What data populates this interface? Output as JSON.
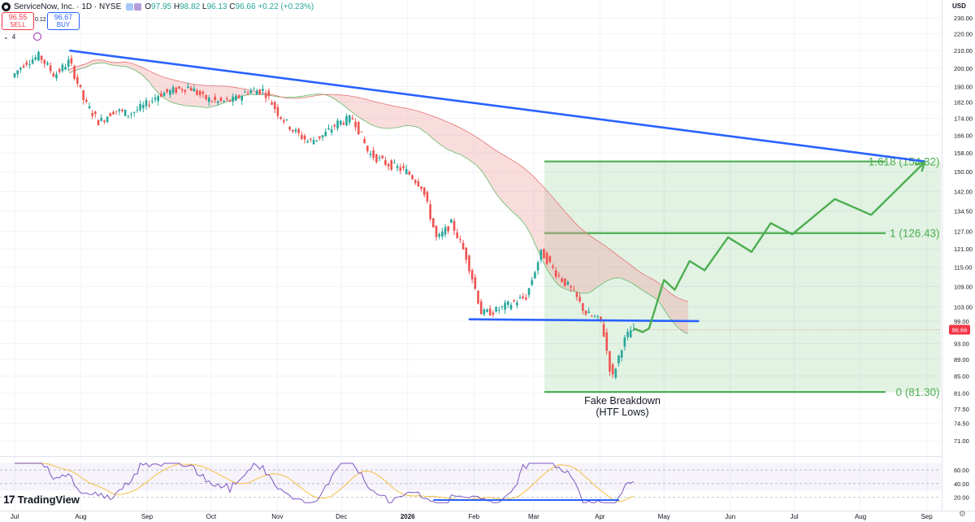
{
  "header": {
    "title": "ServiceNow, Inc. · 1D · NYSE",
    "ohlc": [
      {
        "k": "O",
        "v": "97.95"
      },
      {
        "k": "H",
        "v": "98.82"
      },
      {
        "k": "L",
        "v": "96.13"
      },
      {
        "k": "C",
        "v": "96.66"
      },
      {
        "k": "",
        "v": "+0.22 (+0.23%)"
      }
    ],
    "sell_price": "96.55",
    "sell_label": "SELL",
    "spread": "0.12",
    "buy_price": "96.67",
    "buy_label": "BUY",
    "indicator_count": "4"
  },
  "currency": "USD",
  "brand": "TradingView",
  "colors": {
    "up": "#26a69a",
    "down": "#ef5350",
    "trendline": "#2962ff",
    "fib": "#4caf50",
    "cloud_bull": "#a5d6a7",
    "cloud_bear": "#ef9a9a",
    "price_tag": "#f23645",
    "rsi": "#7e57c2",
    "rsi_ma": "#f5c042"
  },
  "chart_data": {
    "type": "candlestick",
    "symbol": "ServiceNow, Inc.",
    "interval": "1D",
    "exchange": "NYSE",
    "last_price": "96.66",
    "y_scale": "log",
    "ylim": [
      68,
      232
    ],
    "y_ticks": [
      230,
      220,
      210,
      200,
      190,
      182,
      174,
      166,
      158,
      150,
      142,
      134.5,
      127,
      121,
      115,
      109,
      103,
      99,
      93,
      89,
      85,
      81,
      77.5,
      74.5,
      71
    ],
    "y_tick_labels": [
      "230.00",
      "220.00",
      "210.00",
      "200.00",
      "190.00",
      "182.00",
      "174.00",
      "166.00",
      "158.00",
      "150.00",
      "142.00",
      "134.50",
      "127.00",
      "121.00",
      "115.00",
      "109.00",
      "103.00",
      "99.00",
      "93.00",
      "89.00",
      "85.00",
      "81.00",
      "77.50",
      "74.50",
      "71.00"
    ],
    "x_labels": [
      "Jul",
      "Aug",
      "Sep",
      "Oct",
      "Nov",
      "Dec",
      "2026",
      "Feb",
      "Mar",
      "Apr",
      "May",
      "Jun",
      "Jul",
      "Aug",
      "Sep"
    ],
    "price_path": [
      [
        "2025-07-01",
        195
      ],
      [
        "2025-07-07",
        203
      ],
      [
        "2025-07-14",
        207
      ],
      [
        "2025-07-21",
        196
      ],
      [
        "2025-07-28",
        204
      ],
      [
        "2025-08-04",
        182
      ],
      [
        "2025-08-11",
        172
      ],
      [
        "2025-08-18",
        178
      ],
      [
        "2025-08-25",
        176
      ],
      [
        "2025-09-01",
        180
      ],
      [
        "2025-09-08",
        186
      ],
      [
        "2025-09-15",
        188
      ],
      [
        "2025-09-22",
        190
      ],
      [
        "2025-09-29",
        184
      ],
      [
        "2025-10-06",
        182
      ],
      [
        "2025-10-13",
        183
      ],
      [
        "2025-10-20",
        188
      ],
      [
        "2025-10-27",
        188
      ],
      [
        "2025-11-03",
        176
      ],
      [
        "2025-11-10",
        168
      ],
      [
        "2025-11-17",
        163
      ],
      [
        "2025-11-24",
        166
      ],
      [
        "2025-12-01",
        172
      ],
      [
        "2025-12-08",
        174
      ],
      [
        "2025-12-15",
        158
      ],
      [
        "2025-12-22",
        154
      ],
      [
        "2026-01-02",
        150
      ],
      [
        "2026-01-09",
        144
      ],
      [
        "2026-01-16",
        124
      ],
      [
        "2026-01-23",
        130
      ],
      [
        "2026-01-30",
        118
      ],
      [
        "2026-02-06",
        101
      ],
      [
        "2026-02-13",
        102
      ],
      [
        "2026-02-20",
        104
      ],
      [
        "2026-02-27",
        106
      ],
      [
        "2026-03-06",
        120
      ],
      [
        "2026-03-13",
        113
      ],
      [
        "2026-03-20",
        108
      ],
      [
        "2026-03-27",
        101
      ],
      [
        "2026-04-03",
        99
      ],
      [
        "2026-04-08",
        84
      ],
      [
        "2026-04-13",
        93
      ],
      [
        "2026-04-17",
        96.66
      ]
    ],
    "projection": [
      [
        "2026-04-17",
        97
      ],
      [
        "2026-04-21",
        96
      ],
      [
        "2026-04-24",
        97
      ],
      [
        "2026-05-01",
        111
      ],
      [
        "2026-05-06",
        108
      ],
      [
        "2026-05-13",
        117
      ],
      [
        "2026-05-20",
        114
      ],
      [
        "2026-05-31",
        125
      ],
      [
        "2026-06-11",
        120
      ],
      [
        "2026-06-20",
        130
      ],
      [
        "2026-06-30",
        126
      ],
      [
        "2026-07-20",
        139
      ],
      [
        "2026-08-06",
        133
      ],
      [
        "2026-08-31",
        154
      ]
    ],
    "trendlines": [
      {
        "color": "blue",
        "from": [
          "2025-07-27",
          210
        ],
        "to": [
          "2026-08-31",
          154.32
        ]
      },
      {
        "color": "blue",
        "from": [
          "2026-01-30",
          99.5
        ],
        "to": [
          "2026-05-17",
          99.0
        ]
      }
    ],
    "fib_levels": [
      {
        "ratio": "1.618",
        "value": 154.32,
        "label": "1.618 (154.32)"
      },
      {
        "ratio": "1",
        "value": 126.43,
        "label": "1 (126.43)"
      },
      {
        "ratio": "0",
        "value": 81.3,
        "label": "0 (81.30)"
      }
    ],
    "annotations": [
      "Fake Breakdown",
      "(HTF Lows)"
    ],
    "rsi": {
      "levels": [
        60,
        40,
        20
      ],
      "level_labels": [
        "60.00",
        "40.00",
        "20.00"
      ]
    }
  }
}
